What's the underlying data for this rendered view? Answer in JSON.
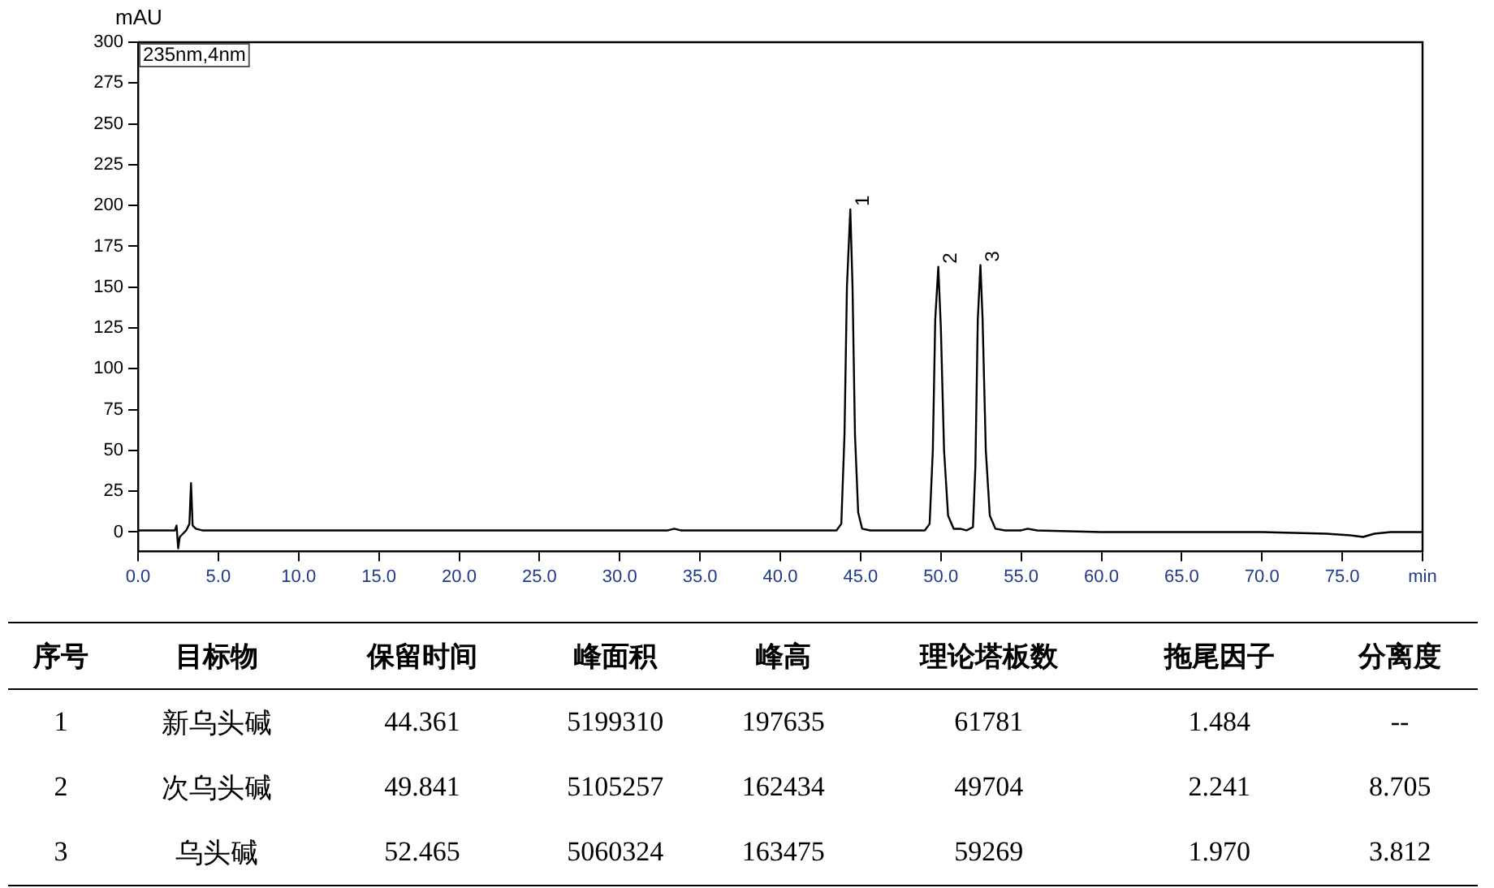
{
  "chart_data": [
    {
      "type": "line",
      "annotations": [
        "235nm,4nm",
        {
          "text": "1",
          "x": 44.361,
          "y": 197.6
        },
        {
          "text": "2",
          "x": 49.841,
          "y": 162.4
        },
        {
          "text": "3",
          "x": 52.465,
          "y": 163.5
        }
      ],
      "ylabel": "mAU",
      "x": [
        0,
        2.0,
        2.3,
        2.4,
        2.5,
        2.6,
        2.8,
        3.0,
        3.2,
        3.3,
        3.4,
        3.6,
        4.0,
        10,
        20,
        30,
        33.0,
        33.4,
        33.8,
        40,
        43.5,
        43.8,
        44.0,
        44.15,
        44.361,
        44.5,
        44.65,
        44.85,
        45.1,
        45.6,
        49.0,
        49.3,
        49.5,
        49.65,
        49.841,
        50.0,
        50.2,
        50.45,
        50.8,
        51.2,
        51.6,
        52.0,
        52.15,
        52.3,
        52.465,
        52.6,
        52.8,
        53.05,
        53.4,
        54.0,
        55.0,
        55.4,
        56.0,
        60,
        65,
        70,
        74,
        75.5,
        76.3,
        77.0,
        78.0,
        80
      ],
      "series": [
        {
          "color": "#000000",
          "values": [
            1,
            1,
            1,
            4,
            -10,
            -3,
            -1,
            1,
            5,
            30,
            4,
            2,
            1,
            1,
            1,
            1,
            1,
            2,
            1,
            1,
            1,
            5,
            60,
            150,
            197.6,
            150,
            60,
            12,
            2,
            1,
            1,
            5,
            50,
            130,
            162.4,
            125,
            50,
            10,
            2,
            2,
            1,
            3,
            40,
            130,
            163.5,
            130,
            50,
            10,
            2,
            1,
            1,
            2,
            1,
            0,
            0,
            0,
            -1,
            -2,
            -3,
            -1,
            0,
            0
          ]
        }
      ],
      "xlim": [
        0,
        80
      ],
      "ylim": [
        -12,
        300
      ],
      "xticks": [
        {
          "value": 0,
          "label": "0.0"
        },
        {
          "value": 5,
          "label": "5.0"
        },
        {
          "value": 10,
          "label": "10.0"
        },
        {
          "value": 15,
          "label": "15.0"
        },
        {
          "value": 20,
          "label": "20.0"
        },
        {
          "value": 25,
          "label": "25.0"
        },
        {
          "value": 30,
          "label": "30.0"
        },
        {
          "value": 35,
          "label": "35.0"
        },
        {
          "value": 40,
          "label": "40.0"
        },
        {
          "value": 45,
          "label": "45.0"
        },
        {
          "value": 50,
          "label": "50.0"
        },
        {
          "value": 55,
          "label": "55.0"
        },
        {
          "value": 60,
          "label": "60.0"
        },
        {
          "value": 65,
          "label": "65.0"
        },
        {
          "value": 70,
          "label": "70.0"
        },
        {
          "value": 75,
          "label": "75.0"
        },
        {
          "value": 80,
          "label": "min"
        }
      ],
      "yticks": [
        0,
        25,
        50,
        75,
        100,
        125,
        150,
        175,
        200,
        225,
        250,
        275,
        300
      ],
      "grid": false,
      "legend": false,
      "marker": "none",
      "line_style": "solid"
    },
    {
      "type": "other",
      "categories": [
        "序号",
        "目标物",
        "保留时间",
        "峰面积",
        "峰高",
        "理论塔板数",
        "拖尾因子",
        "分离度"
      ],
      "cell_labels": [
        [
          "1",
          "新乌头碱",
          "44.361",
          "5199310",
          "197635",
          "61781",
          "1.484",
          "--"
        ],
        [
          "2",
          "次乌头碱",
          "49.841",
          "5105257",
          "162434",
          "49704",
          "2.241",
          "8.705"
        ],
        [
          "3",
          "乌头碱",
          "52.465",
          "5060324",
          "163475",
          "59269",
          "1.970",
          "3.812"
        ]
      ]
    }
  ]
}
